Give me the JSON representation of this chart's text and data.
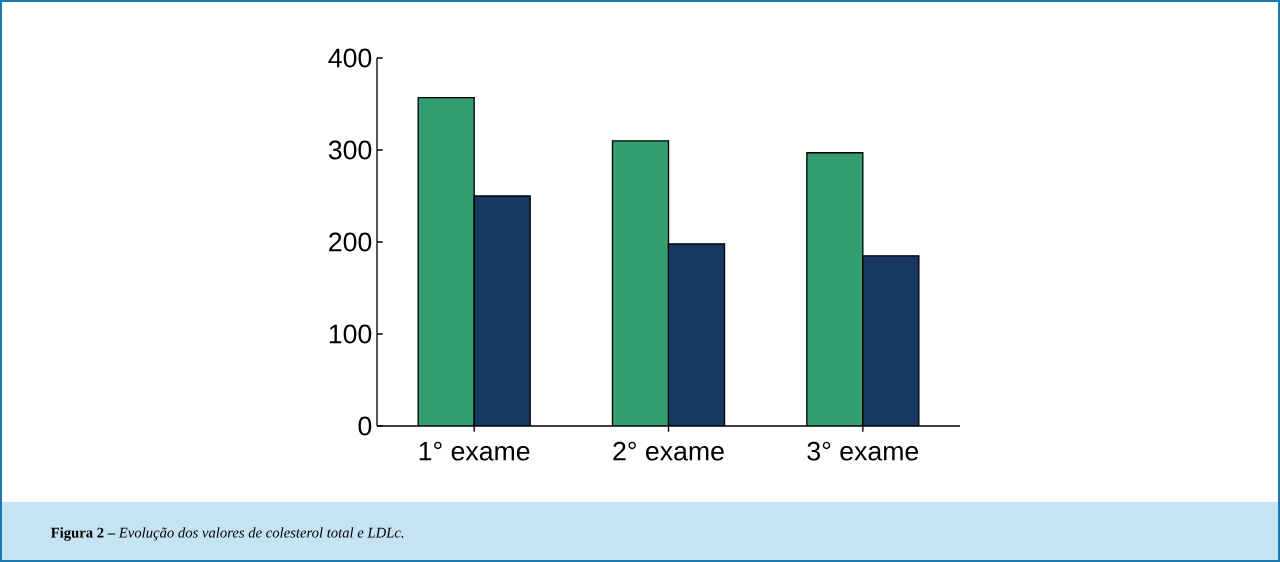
{
  "chart_data": {
    "type": "bar",
    "categories": [
      "1° exame",
      "2° exame",
      "3° exame"
    ],
    "series": [
      {
        "color": "#339e70",
        "values": [
          357,
          310,
          297
        ]
      },
      {
        "color": "#163863",
        "values": [
          250,
          198,
          185
        ]
      }
    ],
    "ylim": [
      0,
      400
    ],
    "yticks": [
      0,
      100,
      200,
      300,
      400
    ],
    "annotations": [
      "**Figura 2 –** *Evolução dos valores de colesterol total e LDLc.*"
    ]
  }
}
